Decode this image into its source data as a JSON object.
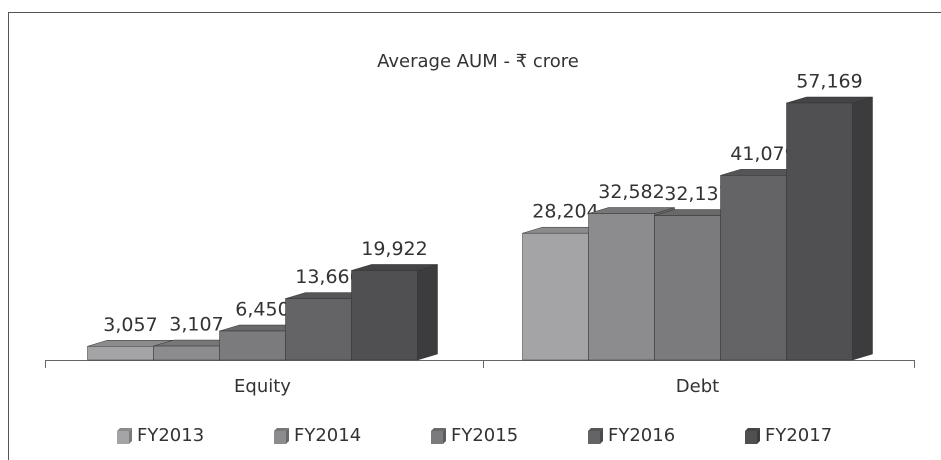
{
  "chart_data": {
    "type": "bar3d",
    "title": "Average AUM - ₹ crore",
    "categories": [
      "Equity",
      "Debt"
    ],
    "series": [
      {
        "name": "FY2013",
        "color": "#a4a4a6",
        "values": [
          3057,
          28204
        ],
        "value_labels": [
          "3,057",
          "28,204"
        ]
      },
      {
        "name": "FY2014",
        "color": "#8c8c8e",
        "values": [
          3107,
          32582
        ],
        "value_labels": [
          "3,107",
          "32,582"
        ]
      },
      {
        "name": "FY2015",
        "color": "#7b7b7d",
        "values": [
          6450,
          32137
        ],
        "value_labels": [
          "6,450",
          "32,137"
        ]
      },
      {
        "name": "FY2016",
        "color": "#646466",
        "values": [
          13666,
          41079
        ],
        "value_labels": [
          "13,666",
          "41,079"
        ]
      },
      {
        "name": "FY2017",
        "color": "#505052",
        "values": [
          19922,
          57169
        ],
        "value_labels": [
          "19,922",
          "57,169"
        ]
      }
    ],
    "legend": "bottom"
  }
}
